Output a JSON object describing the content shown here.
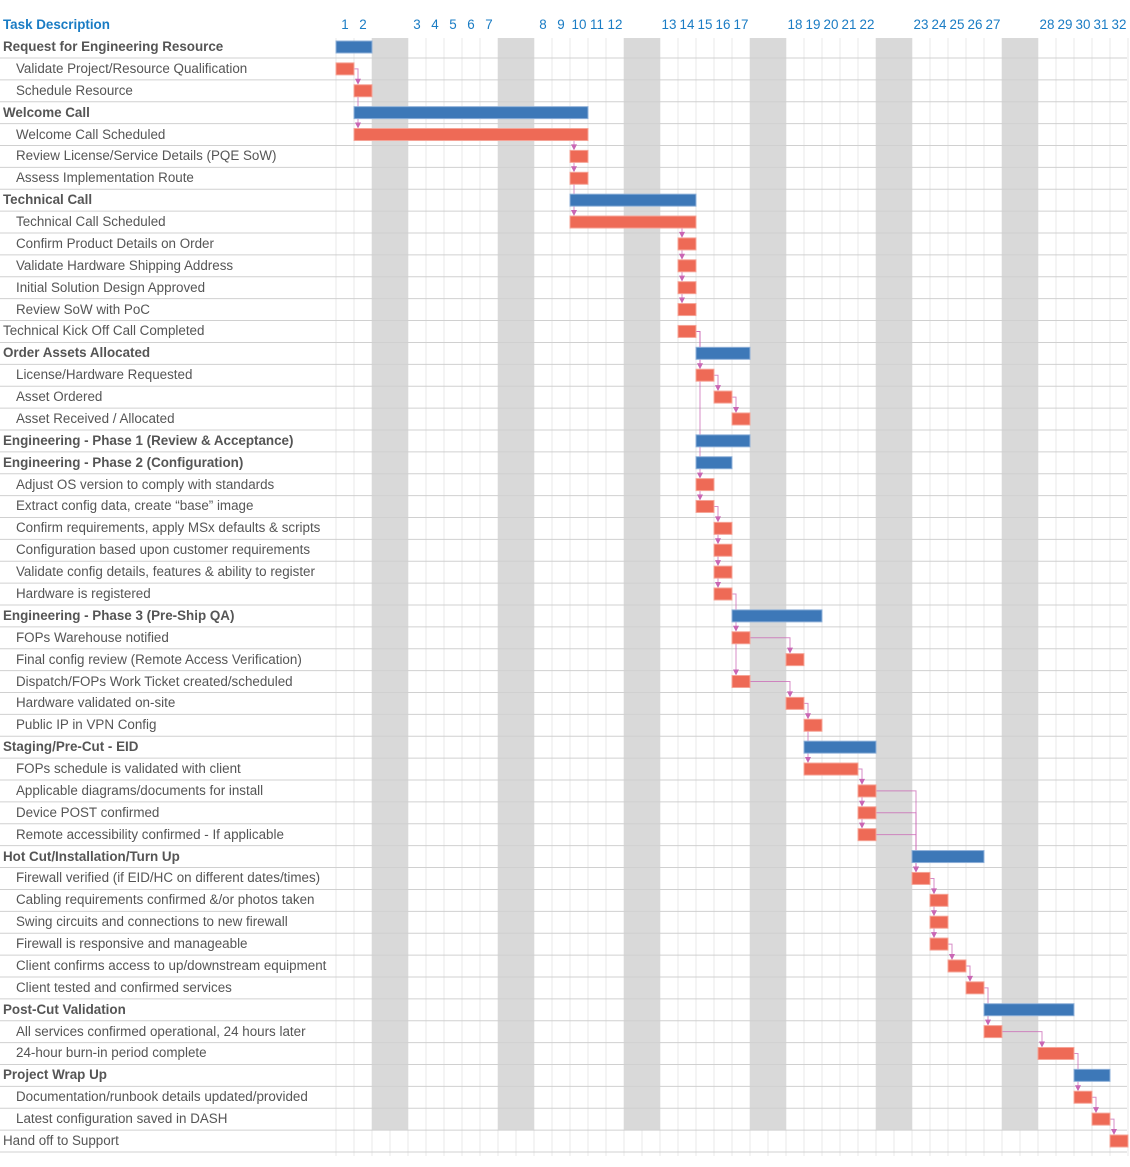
{
  "chart_data": {
    "type": "gantt",
    "header": "Task Description",
    "days": [
      1,
      2,
      3,
      4,
      5,
      6,
      7,
      8,
      9,
      10,
      11,
      12,
      13,
      14,
      15,
      16,
      17,
      18,
      19,
      20,
      21,
      22,
      23,
      24,
      25,
      26,
      27,
      28,
      29,
      30,
      31,
      32
    ],
    "weekend_after_days": [
      2,
      7,
      12,
      17,
      22,
      27
    ],
    "colors": {
      "summary": "#3d78b8",
      "task": "#ee6a56",
      "weekend": "#d9d9d9",
      "link": "#c966b4",
      "header": "#1a7cc4"
    },
    "rows": [
      {
        "label": "Request for Engineering Resource",
        "kind": "summary",
        "start": 1,
        "end": 2
      },
      {
        "label": "Validate Project/Resource Qualification",
        "kind": "task",
        "start": 1,
        "end": 1
      },
      {
        "label": "Schedule Resource",
        "kind": "task",
        "start": 2,
        "end": 2
      },
      {
        "label": "Welcome Call",
        "kind": "summary",
        "start": 2,
        "end": 10
      },
      {
        "label": "Welcome Call Scheduled",
        "kind": "task",
        "start": 2,
        "end": 10
      },
      {
        "label": "Review License/Service Details (PQE SoW)",
        "kind": "task",
        "start": 10,
        "end": 10
      },
      {
        "label": "Assess Implementation Route",
        "kind": "task",
        "start": 10,
        "end": 10
      },
      {
        "label": "Technical Call",
        "kind": "summary",
        "start": 10,
        "end": 14
      },
      {
        "label": "Technical Call Scheduled",
        "kind": "task",
        "start": 10,
        "end": 14
      },
      {
        "label": "Confirm Product Details on Order",
        "kind": "task",
        "start": 14,
        "end": 14
      },
      {
        "label": "Validate Hardware Shipping Address",
        "kind": "task",
        "start": 14,
        "end": 14
      },
      {
        "label": "Initial Solution Design Approved",
        "kind": "task",
        "start": 14,
        "end": 14
      },
      {
        "label": "Review SoW with PoC",
        "kind": "task",
        "start": 14,
        "end": 14
      },
      {
        "label": "Technical Kick Off Call Completed",
        "kind": "root",
        "start": 14,
        "end": 14
      },
      {
        "label": "Order Assets Allocated",
        "kind": "summary",
        "start": 15,
        "end": 17
      },
      {
        "label": "License/Hardware Requested",
        "kind": "task",
        "start": 15,
        "end": 15
      },
      {
        "label": "Asset Ordered",
        "kind": "task",
        "start": 16,
        "end": 16
      },
      {
        "label": "Asset Received / Allocated",
        "kind": "task",
        "start": 17,
        "end": 17
      },
      {
        "label": "Engineering - Phase 1 (Review & Acceptance)",
        "kind": "summary",
        "start": 15,
        "end": 17
      },
      {
        "label": "Engineering - Phase 2 (Configuration)",
        "kind": "summary",
        "start": 15,
        "end": 16
      },
      {
        "label": "Adjust OS version to comply with standards",
        "kind": "task",
        "start": 15,
        "end": 15
      },
      {
        "label": "Extract config data, create “base” image",
        "kind": "task",
        "start": 15,
        "end": 15
      },
      {
        "label": "Confirm requirements, apply MSx defaults & scripts",
        "kind": "task",
        "start": 16,
        "end": 16
      },
      {
        "label": "Configuration based upon customer requirements",
        "kind": "task",
        "start": 16,
        "end": 16
      },
      {
        "label": "Validate config details, features & ability to register",
        "kind": "task",
        "start": 16,
        "end": 16
      },
      {
        "label": "Hardware is registered",
        "kind": "task",
        "start": 16,
        "end": 16
      },
      {
        "label": "Engineering - Phase 3 (Pre-Ship QA)",
        "kind": "summary",
        "start": 17,
        "end": 19
      },
      {
        "label": "FOPs Warehouse notified",
        "kind": "task",
        "start": 17,
        "end": 17
      },
      {
        "label": "Final config review (Remote Access Verification)",
        "kind": "task",
        "start": 18,
        "end": 18
      },
      {
        "label": "Dispatch/FOPs Work Ticket created/scheduled",
        "kind": "task",
        "start": 17,
        "end": 17
      },
      {
        "label": "Hardware validated on-site",
        "kind": "task",
        "start": 18,
        "end": 18
      },
      {
        "label": "Public IP in VPN Config",
        "kind": "task",
        "start": 19,
        "end": 19
      },
      {
        "label": "Staging/Pre-Cut - EID",
        "kind": "summary",
        "start": 19,
        "end": 22
      },
      {
        "label": "FOPs schedule is validated with client",
        "kind": "task",
        "start": 19,
        "end": 21
      },
      {
        "label": "Applicable diagrams/documents for install",
        "kind": "task",
        "start": 22,
        "end": 22
      },
      {
        "label": "Device POST confirmed",
        "kind": "task",
        "start": 22,
        "end": 22
      },
      {
        "label": "Remote accessibility confirmed - If applicable",
        "kind": "task",
        "start": 22,
        "end": 22
      },
      {
        "label": "Hot Cut/Installation/Turn Up",
        "kind": "summary",
        "start": 23,
        "end": 26
      },
      {
        "label": "Firewall verified (if EID/HC on different dates/times)",
        "kind": "task",
        "start": 23,
        "end": 23
      },
      {
        "label": "Cabling requirements confirmed &/or photos taken",
        "kind": "task",
        "start": 24,
        "end": 24
      },
      {
        "label": "Swing circuits and connections to new firewall",
        "kind": "task",
        "start": 24,
        "end": 24
      },
      {
        "label": "Firewall is responsive and manageable",
        "kind": "task",
        "start": 24,
        "end": 24
      },
      {
        "label": "Client confirms access to up/downstream equipment",
        "kind": "task",
        "start": 25,
        "end": 25
      },
      {
        "label": "Client tested and confirmed services",
        "kind": "task",
        "start": 26,
        "end": 26
      },
      {
        "label": "Post-Cut Validation",
        "kind": "summary",
        "start": 27,
        "end": 29
      },
      {
        "label": "All services confirmed operational, 24 hours later",
        "kind": "task",
        "start": 27,
        "end": 27
      },
      {
        "label": "24-hour burn-in period complete",
        "kind": "task",
        "start": 28,
        "end": 29
      },
      {
        "label": "Project Wrap Up",
        "kind": "summary",
        "start": 30,
        "end": 31
      },
      {
        "label": "Documentation/runbook details updated/provided",
        "kind": "task",
        "start": 30,
        "end": 30
      },
      {
        "label": "Latest configuration saved in DASH",
        "kind": "task",
        "start": 31,
        "end": 31
      },
      {
        "label": "Hand off to Support",
        "kind": "root",
        "start": 32,
        "end": 32
      }
    ],
    "links": [
      [
        2,
        3
      ],
      [
        3,
        5
      ],
      [
        5,
        6
      ],
      [
        6,
        7
      ],
      [
        7,
        9
      ],
      [
        9,
        10
      ],
      [
        10,
        11
      ],
      [
        11,
        12
      ],
      [
        12,
        13
      ],
      [
        14,
        16
      ],
      [
        16,
        17
      ],
      [
        17,
        18
      ],
      [
        14,
        21
      ],
      [
        21,
        22
      ],
      [
        22,
        23
      ],
      [
        23,
        24
      ],
      [
        24,
        25
      ],
      [
        25,
        26
      ],
      [
        26,
        28
      ],
      [
        28,
        29
      ],
      [
        28,
        30
      ],
      [
        30,
        31
      ],
      [
        31,
        32
      ],
      [
        32,
        34
      ],
      [
        34,
        35
      ],
      [
        35,
        36
      ],
      [
        36,
        37
      ],
      [
        35,
        39
      ],
      [
        36,
        39
      ],
      [
        37,
        39
      ],
      [
        39,
        40
      ],
      [
        40,
        41
      ],
      [
        41,
        42
      ],
      [
        42,
        43
      ],
      [
        43,
        44
      ],
      [
        44,
        46
      ],
      [
        46,
        47
      ],
      [
        47,
        49
      ],
      [
        49,
        50
      ],
      [
        50,
        51
      ]
    ]
  }
}
